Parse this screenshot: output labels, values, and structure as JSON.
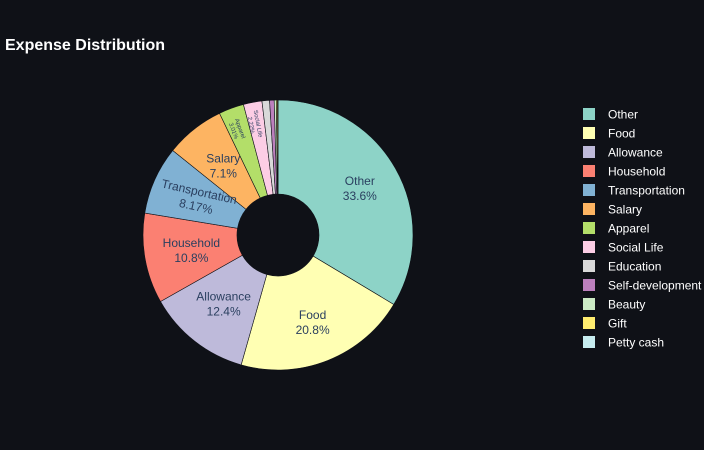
{
  "chart_data": {
    "type": "pie",
    "title": "Expense Distribution",
    "hole": true,
    "legend_position": "right",
    "slices": [
      {
        "label": "Other",
        "value": 33.6,
        "text": "33.6%",
        "color": "#8dd3c7"
      },
      {
        "label": "Food",
        "value": 20.8,
        "text": "20.8%",
        "color": "#ffffb3"
      },
      {
        "label": "Allowance",
        "value": 12.4,
        "text": "12.4%",
        "color": "#bebada"
      },
      {
        "label": "Household",
        "value": 10.8,
        "text": "10.8%",
        "color": "#fb8072"
      },
      {
        "label": "Transportation",
        "value": 8.17,
        "text": "8.17%",
        "color": "#80b1d3"
      },
      {
        "label": "Salary",
        "value": 7.1,
        "text": "7.1%",
        "color": "#fdb462"
      },
      {
        "label": "Apparel",
        "value": 3.01,
        "text": "3.01%",
        "color": "#b3de69"
      },
      {
        "label": "Social Life",
        "value": 2.22,
        "text": "2.22%",
        "color": "#fccde5"
      },
      {
        "label": "Education",
        "value": 0.9,
        "text": "",
        "color": "#d9d9d9"
      },
      {
        "label": "Self-development",
        "value": 0.55,
        "text": "",
        "color": "#bc80bd"
      },
      {
        "label": "Beauty",
        "value": 0.25,
        "text": "",
        "color": "#ccebc5"
      },
      {
        "label": "Gift",
        "value": 0.15,
        "text": "",
        "color": "#ffed6f"
      },
      {
        "label": "Petty cash",
        "value": 0.05,
        "text": "",
        "color": "#c6ecef"
      }
    ]
  }
}
